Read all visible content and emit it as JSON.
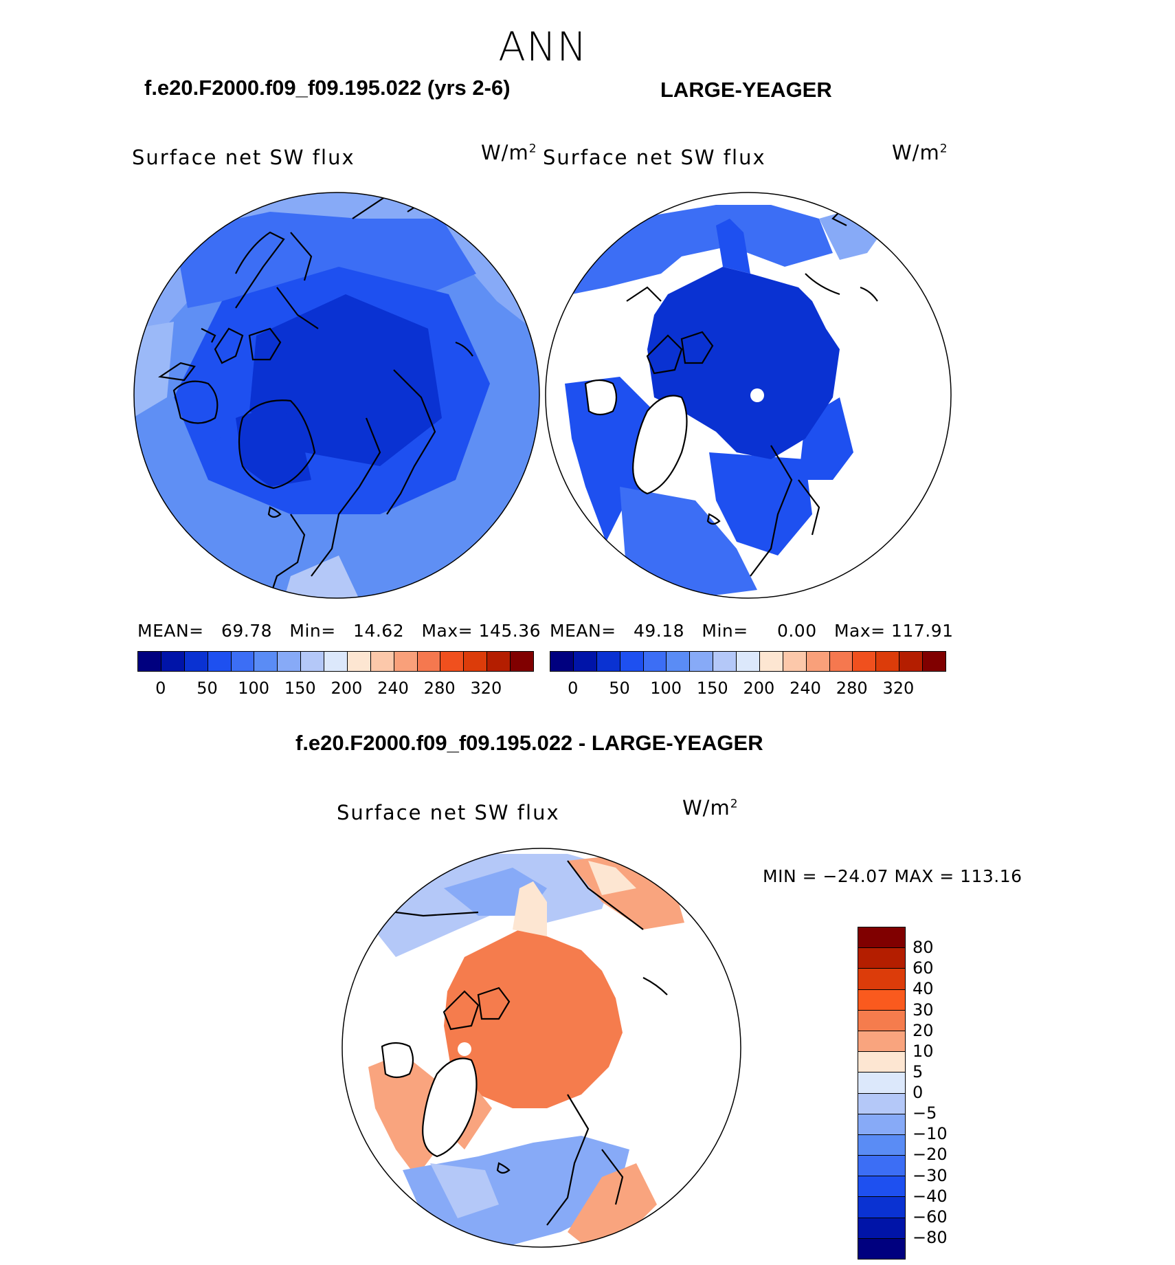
{
  "main_title": "ANN",
  "case_left": "f.e20.F2000.f09_f09.195.022 (yrs 2-6)",
  "case_right": "LARGE-YEAGER",
  "diff_title": "f.e20.F2000.f09_f09.195.022 - LARGE-YEAGER",
  "variable": "Surface net SW flux",
  "units": "W/m",
  "units_exp": "2",
  "panel_left": {
    "mean_label": "MEAN=",
    "mean": "69.78",
    "min_label": "Min=",
    "min": "14.62",
    "max_label": "Max=",
    "max": "145.36"
  },
  "panel_right": {
    "mean_label": "MEAN=",
    "mean": "49.18",
    "min_label": "Min=",
    "min": "0.00",
    "max_label": "Max=",
    "max": "117.91"
  },
  "diff_minmax": "MIN = −24.07 MAX = 113.16",
  "abs_colorbar": {
    "colors": [
      "#00007f",
      "#0014a8",
      "#0a32d2",
      "#1e50f0",
      "#3c6ef5",
      "#5a8cf5",
      "#87aaf7",
      "#b4c8f8",
      "#dce8fb",
      "#fde6d2",
      "#fcc8aa",
      "#f9a07a",
      "#f5784f",
      "#f0501e",
      "#dc3c0a",
      "#b41e00",
      "#800000"
    ],
    "labels": [
      "0",
      "50",
      "100",
      "150",
      "200",
      "240",
      "280",
      "320"
    ]
  },
  "diff_colorbar": {
    "colors": [
      "#800000",
      "#b41e00",
      "#dc3c0a",
      "#fa5a1e",
      "#f57c4d",
      "#f9a47e",
      "#fde6d2",
      "#dce8fb",
      "#b4c8f8",
      "#87aaf7",
      "#5a8cf5",
      "#3c6ef5",
      "#1e50f0",
      "#0a32d2",
      "#0014a8",
      "#00007f"
    ],
    "labels": [
      "80",
      "60",
      "40",
      "30",
      "20",
      "10",
      "5",
      "0",
      "−5",
      "−10",
      "−20",
      "−30",
      "−40",
      "−60",
      "−80"
    ]
  }
}
